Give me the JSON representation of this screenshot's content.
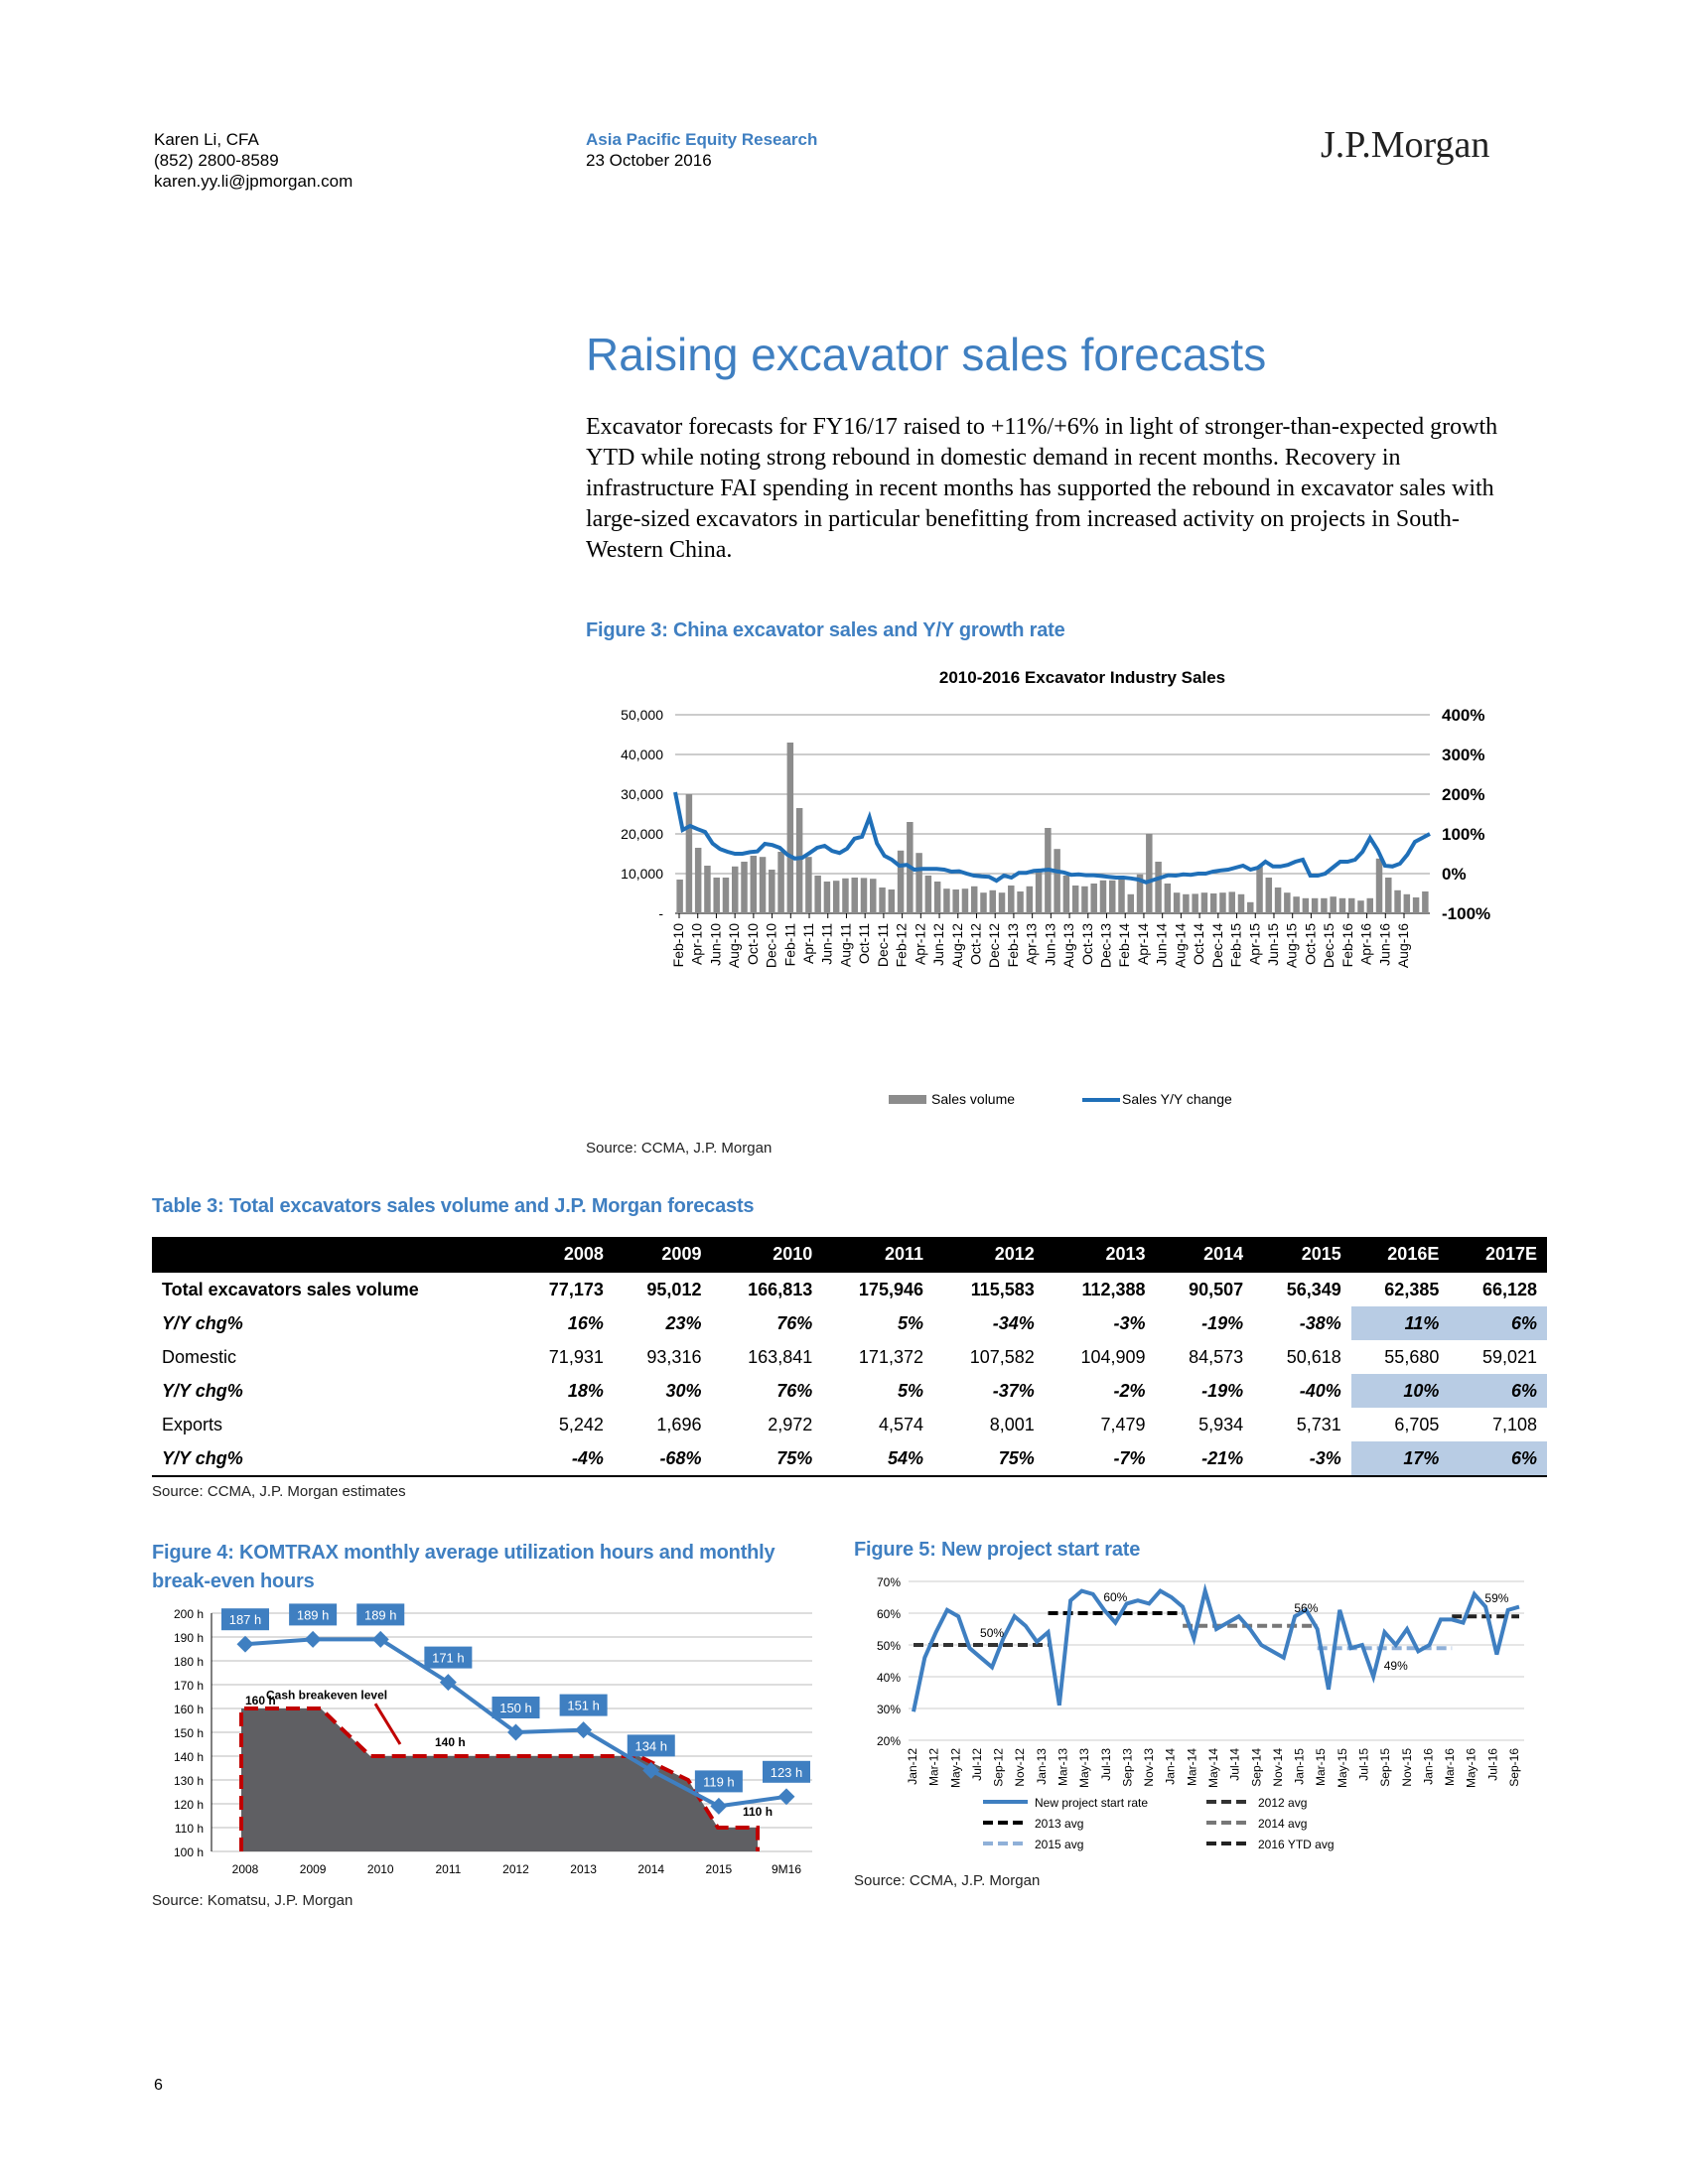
{
  "header": {
    "author_name": "Karen Li, CFA",
    "author_phone": "(852) 2800-8589",
    "author_email": "karen.yy.li@jpmorgan.com",
    "report_type": "Asia Pacific Equity Research",
    "report_date": "23 October 2016",
    "logo_text": "J.P.Morgan"
  },
  "section_title": "Raising excavator sales forecasts",
  "paragraph": "Excavator forecasts for FY16/17 raised to +11%/+6% in light of stronger-than-expected growth YTD while noting strong rebound in domestic demand in recent months. Recovery in infrastructure FAI spending in recent months has supported the rebound in excavator sales with large-sized excavators in particular benefitting from increased activity on projects in South-Western China.",
  "figure3": {
    "caption": "Figure 3: China excavator sales and Y/Y growth rate",
    "source": "Source: CCMA, J.P. Morgan"
  },
  "table3": {
    "caption": "Table 3: Total excavators sales volume and J.P. Morgan forecasts",
    "columns": [
      "2008",
      "2009",
      "2010",
      "2011",
      "2012",
      "2013",
      "2014",
      "2015",
      "2016E",
      "2017E"
    ],
    "rows": [
      {
        "label": "Total excavators sales volume",
        "values": [
          "77,173",
          "95,012",
          "166,813",
          "175,946",
          "115,583",
          "112,388",
          "90,507",
          "56,349",
          "62,385",
          "66,128"
        ],
        "style": "bold"
      },
      {
        "label": "Y/Y chg%",
        "values": [
          "16%",
          "23%",
          "76%",
          "5%",
          "-34%",
          "-3%",
          "-19%",
          "-38%",
          "11%",
          "6%"
        ],
        "style": "ital"
      },
      {
        "label": "Domestic",
        "values": [
          "71,931",
          "93,316",
          "163,841",
          "171,372",
          "107,582",
          "104,909",
          "84,573",
          "50,618",
          "55,680",
          "59,021"
        ],
        "style": "plain"
      },
      {
        "label": "Y/Y chg%",
        "values": [
          "18%",
          "30%",
          "76%",
          "5%",
          "-37%",
          "-2%",
          "-19%",
          "-40%",
          "10%",
          "6%"
        ],
        "style": "ital"
      },
      {
        "label": "Exports",
        "values": [
          "5,242",
          "1,696",
          "2,972",
          "4,574",
          "8,001",
          "7,479",
          "5,934",
          "5,731",
          "6,705",
          "7,108"
        ],
        "style": "plain"
      },
      {
        "label": "Y/Y chg%",
        "values": [
          "-4%",
          "-68%",
          "75%",
          "54%",
          "75%",
          "-7%",
          "-21%",
          "-3%",
          "17%",
          "6%"
        ],
        "style": "ital"
      }
    ],
    "source": "Source: CCMA, J.P. Morgan estimates"
  },
  "figure4": {
    "caption_line1": "Figure 4: KOMTRAX monthly average utilization hours and monthly",
    "caption_line2": "break-even hours",
    "source": "Source: Komatsu, J.P. Morgan"
  },
  "figure5": {
    "caption": "Figure 5: New project start rate",
    "source": "Source: CCMA, J.P. Morgan"
  },
  "page_number": "6",
  "colors": {
    "accent_blue": "#3f7fc1",
    "bar_gray": "#8c8c8c",
    "line_blue": "#1f6fb8",
    "highlight": "#b8cce4",
    "dashed_red": "#c00000"
  },
  "chart_data": [
    {
      "type": "bar",
      "title": "2010-2016 Excavator Industry Sales",
      "x_tick_labels": [
        "Feb-10",
        "Apr-10",
        "Jun-10",
        "Aug-10",
        "Oct-10",
        "Dec-10",
        "Feb-11",
        "Apr-11",
        "Jun-11",
        "Aug-11",
        "Oct-11",
        "Dec-11",
        "Feb-12",
        "Apr-12",
        "Jun-12",
        "Aug-12",
        "Oct-12",
        "Dec-12",
        "Feb-13",
        "Apr-13",
        "Jun-13",
        "Aug-13",
        "Oct-13",
        "Dec-13",
        "Feb-14",
        "Apr-14",
        "Jun-14",
        "Aug-14",
        "Oct-14",
        "Dec-14",
        "Feb-15",
        "Apr-15",
        "Jun-15",
        "Aug-15",
        "Oct-15",
        "Dec-15",
        "Feb-16",
        "Apr-16",
        "Jun-16",
        "Aug-16"
      ],
      "y_left_ticks": [
        "-",
        "10,000",
        "20,000",
        "30,000",
        "40,000",
        "50,000"
      ],
      "y_right_ticks": [
        "-100%",
        "0%",
        "100%",
        "200%",
        "300%",
        "400%"
      ],
      "ylim_left": [
        0,
        50000
      ],
      "ylim_right": [
        -100,
        400
      ],
      "legend": [
        "Sales volume",
        "Sales Y/Y change"
      ],
      "legend_position": "bottom",
      "series": [
        {
          "name": "Sales volume",
          "kind": "bar",
          "values": [
            8500,
            30000,
            16500,
            12000,
            9000,
            9000,
            11800,
            13000,
            14500,
            14200,
            11000,
            15500,
            43000,
            26500,
            14200,
            9500,
            8000,
            8200,
            8800,
            9000,
            8900,
            8700,
            6500,
            6000,
            15800,
            23000,
            15200,
            9500,
            8000,
            6200,
            6000,
            6200,
            6800,
            5200,
            5800,
            5200,
            7000,
            5500,
            6800,
            11000,
            21500,
            16200,
            9500,
            7000,
            6800,
            7500,
            8300,
            8300,
            9200,
            4800,
            9800,
            20000,
            13000,
            7500,
            5200,
            4800,
            4900,
            5200,
            5000,
            5200,
            5400,
            4800,
            2800,
            11800,
            9000,
            6500,
            5200,
            4200,
            3800,
            3800,
            3800,
            4200,
            3800,
            3800,
            3200,
            3800,
            13800,
            9000,
            5800,
            4800,
            4000,
            5500
          ]
        },
        {
          "name": "Sales Y/Y change",
          "kind": "line",
          "values": [
            205,
            110,
            120,
            112,
            105,
            76,
            62,
            55,
            50,
            50,
            54,
            56,
            75,
            72,
            65,
            48,
            38,
            40,
            52,
            65,
            70,
            57,
            52,
            63,
            88,
            93,
            142,
            76,
            45,
            35,
            20,
            22,
            10,
            12,
            12,
            12,
            10,
            5,
            6,
            0,
            -5,
            -7,
            -8,
            -18,
            -5,
            -10,
            2,
            2,
            7,
            8,
            10,
            6,
            3,
            -3,
            -2,
            -4,
            -4,
            -6,
            -8,
            -10,
            -10,
            -12,
            -15,
            -22,
            -16,
            -10,
            -4,
            -5,
            -2,
            -3,
            0,
            0,
            5,
            8,
            10,
            15,
            20,
            10,
            15,
            30,
            18,
            18,
            22,
            30,
            35,
            -5,
            -5,
            0,
            15,
            30,
            30,
            35,
            55,
            90,
            60,
            20,
            18,
            25,
            48,
            80,
            90,
            100
          ]
        }
      ]
    },
    {
      "type": "line",
      "x_tick_labels": [
        "2008",
        "2009",
        "2010",
        "2011",
        "2012",
        "2013",
        "2014",
        "2015",
        "9M16"
      ],
      "y_tick_labels": [
        "100 h",
        "110 h",
        "120 h",
        "130 h",
        "140 h",
        "150 h",
        "160 h",
        "170 h",
        "180 h",
        "190 h",
        "200 h"
      ],
      "ylim": [
        100,
        200
      ],
      "series": [
        {
          "name": "Utilization hours",
          "values": [
            187,
            189,
            189,
            171,
            150,
            151,
            134,
            119,
            123
          ],
          "data_labels": [
            "187 h",
            "189 h",
            "189 h",
            "171 h",
            "150 h",
            "151 h",
            "134 h",
            "119 h",
            "123 h"
          ]
        },
        {
          "name": "Cash breakeven level",
          "values": [
            160,
            160,
            140,
            140,
            140,
            140,
            130,
            110,
            110
          ]
        }
      ],
      "annotations": [
        "Cash breakeven level",
        "160 h",
        "140 h",
        "110 h"
      ]
    },
    {
      "type": "line",
      "x_tick_labels": [
        "Jan-12",
        "Mar-12",
        "May-12",
        "Jul-12",
        "Sep-12",
        "Nov-12",
        "Jan-13",
        "Mar-13",
        "May-13",
        "Jul-13",
        "Sep-13",
        "Nov-13",
        "Jan-14",
        "Mar-14",
        "May-14",
        "Jul-14",
        "Sep-14",
        "Nov-14",
        "Jan-15",
        "Mar-15",
        "May-15",
        "Jul-15",
        "Sep-15",
        "Nov-15",
        "Jan-16",
        "Mar-16",
        "May-16",
        "Jul-16",
        "Sep-16"
      ],
      "y_tick_labels": [
        "20%",
        "30%",
        "40%",
        "50%",
        "60%",
        "70%"
      ],
      "ylim": [
        20,
        70
      ],
      "legend": [
        "New project start rate",
        "2012 avg",
        "2013 avg",
        "2014 avg",
        "2015 avg",
        "2016 YTD avg"
      ],
      "legend_position": "bottom",
      "series": [
        {
          "name": "New project start rate",
          "values": [
            29,
            46,
            54,
            61,
            59,
            49,
            46,
            43,
            52,
            59,
            56,
            51,
            54,
            31,
            64,
            67,
            66,
            61,
            57,
            63,
            64,
            63,
            67,
            65,
            62,
            52,
            67,
            55,
            57,
            59,
            55,
            50,
            48,
            46,
            59,
            61,
            55,
            36,
            61,
            49,
            50,
            40,
            54,
            50,
            55,
            48,
            50,
            58,
            58,
            57,
            66,
            62,
            47,
            61,
            62
          ]
        },
        {
          "name": "2012 avg",
          "value": 50
        },
        {
          "name": "2013 avg",
          "value": 60
        },
        {
          "name": "2014 avg",
          "value": 56
        },
        {
          "name": "2015 avg",
          "value": 49
        },
        {
          "name": "2016 YTD avg",
          "value": 59
        }
      ],
      "annotations": [
        "50%",
        "60%",
        "56%",
        "49%",
        "59%"
      ]
    }
  ]
}
